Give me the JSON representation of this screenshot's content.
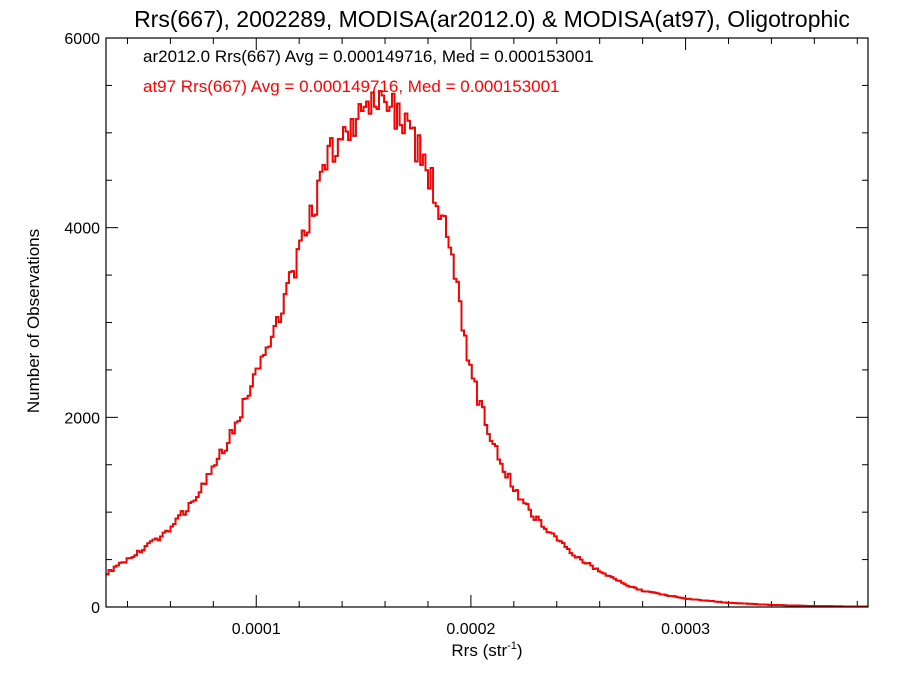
{
  "chart_data": {
    "type": "line",
    "title": "Rrs(667), 2002289, MODISA(ar2012.0) & MODISA(at97), Oligotrophic",
    "xlabel": "Rrs (str",
    "xlabel_sup": "-1",
    "xlabel_end": ")",
    "ylabel": "Number of Observations",
    "xlim": [
      3e-05,
      0.000385
    ],
    "ylim": [
      0,
      6000
    ],
    "x_ticks": [
      {
        "value": 0.0001,
        "label": "0.0001"
      },
      {
        "value": 0.0002,
        "label": "0.0002"
      },
      {
        "value": 0.0003,
        "label": "0.0003"
      }
    ],
    "y_ticks": [
      {
        "value": 0,
        "label": "0"
      },
      {
        "value": 2000,
        "label": "2000"
      },
      {
        "value": 4000,
        "label": "4000"
      },
      {
        "value": 6000,
        "label": "6000"
      }
    ],
    "annotations": [
      {
        "text": "ar2012.0 Rrs(667) Avg = 0.000149716, Med = 0.000153001",
        "color": "#000000"
      },
      {
        "text": "at97 Rrs(667) Avg = 0.000149716, Med = 0.000153001",
        "color": "#ff0000"
      }
    ],
    "series": [
      {
        "name": "ar2012.0",
        "color": "#000000",
        "step": "histogram",
        "x": [
          3e-05,
          4e-05,
          5e-05,
          6e-05,
          7e-05,
          8e-05,
          9e-05,
          0.0001,
          0.00011,
          0.00012,
          0.00013,
          0.000135,
          0.00014,
          0.000145,
          0.00015,
          0.000155,
          0.00016,
          0.000165,
          0.00017,
          0.000175,
          0.00018,
          0.000185,
          0.00019,
          0.000195,
          0.0002,
          0.00021,
          0.00022,
          0.00023,
          0.00024,
          0.00025,
          0.00026,
          0.00027,
          0.00028,
          0.0003,
          0.00032,
          0.00034,
          0.00036,
          0.00038
        ],
        "y": [
          350,
          500,
          650,
          830,
          1100,
          1450,
          1900,
          2450,
          3050,
          3700,
          4450,
          4800,
          4950,
          5100,
          5200,
          5300,
          5320,
          5250,
          5050,
          4850,
          4600,
          4250,
          3750,
          3200,
          2450,
          1750,
          1250,
          950,
          720,
          520,
          380,
          260,
          170,
          90,
          45,
          22,
          10,
          5
        ]
      },
      {
        "name": "at97",
        "color": "#ff0000",
        "step": "histogram",
        "x": [
          3e-05,
          4e-05,
          5e-05,
          6e-05,
          7e-05,
          8e-05,
          9e-05,
          0.0001,
          0.00011,
          0.00012,
          0.00013,
          0.000135,
          0.00014,
          0.000145,
          0.00015,
          0.000155,
          0.00016,
          0.000165,
          0.00017,
          0.000175,
          0.00018,
          0.000185,
          0.00019,
          0.000195,
          0.0002,
          0.00021,
          0.00022,
          0.00023,
          0.00024,
          0.00025,
          0.00026,
          0.00027,
          0.00028,
          0.0003,
          0.00032,
          0.00034,
          0.00036,
          0.00038
        ],
        "y": [
          350,
          500,
          650,
          830,
          1100,
          1450,
          1900,
          2450,
          3050,
          3700,
          4450,
          4800,
          4950,
          5100,
          5200,
          5300,
          5320,
          5250,
          5050,
          4850,
          4600,
          4250,
          3750,
          3200,
          2450,
          1750,
          1250,
          950,
          720,
          520,
          380,
          260,
          170,
          90,
          45,
          22,
          10,
          5
        ]
      }
    ]
  }
}
